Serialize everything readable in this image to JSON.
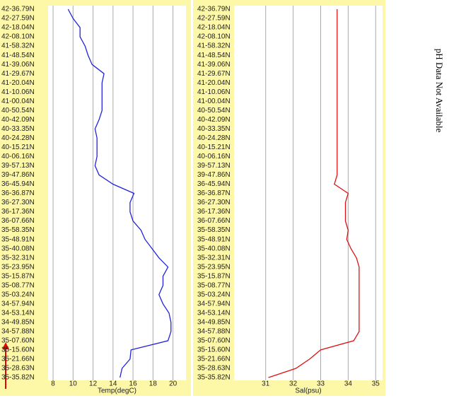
{
  "chart_data": [
    {
      "type": "line",
      "x_label": "Temp(degC)",
      "categories": [
        "42-36.79N",
        "42-27.59N",
        "42-18.04N",
        "42-08.10N",
        "41-58.32N",
        "41-48.54N",
        "41-39.06N",
        "41-29.67N",
        "41-20.04N",
        "41-10.06N",
        "41-00.04N",
        "40-50.54N",
        "40-42.09N",
        "40-33.35N",
        "40-24.28N",
        "40-15.21N",
        "40-06.16N",
        "39-57.13N",
        "39-47.86N",
        "36-45.94N",
        "36-36.87N",
        "36-27.30N",
        "36-17.36N",
        "36-07.66N",
        "35-58.35N",
        "35-48.91N",
        "35-40.08N",
        "35-32.31N",
        "35-23.95N",
        "35-15.87N",
        "35-08.77N",
        "35-03.24N",
        "34-57.94N",
        "34-53.14N",
        "34-49.85N",
        "34-57.88N",
        "35-07.60N",
        "35-15.60N",
        "35-21.66N",
        "35-28.63N",
        "35-35.82N"
      ],
      "series": [
        {
          "color": "#2222dd",
          "values": [
            9.5,
            10.0,
            10.7,
            10.7,
            11.2,
            11.5,
            11.9,
            13.1,
            12.9,
            12.9,
            12.9,
            12.9,
            12.6,
            12.2,
            12.4,
            12.4,
            12.4,
            12.2,
            12.6,
            14.0,
            16.1,
            15.7,
            15.7,
            16.0,
            16.8,
            17.2,
            17.9,
            18.6,
            19.5,
            19.0,
            19.0,
            18.6,
            19.0,
            19.6,
            19.8,
            19.8,
            19.5,
            15.8,
            15.7,
            14.9,
            14.7
          ]
        }
      ],
      "xlim": [
        7.5,
        21.3
      ],
      "xticks": [
        8,
        10,
        12,
        14,
        16,
        18,
        20
      ],
      "grid": true
    },
    {
      "type": "line",
      "x_label": "Sal(psu)",
      "categories": [
        "42-36.79N",
        "42-27.59N",
        "42-18.04N",
        "42-08.10N",
        "41-58.32N",
        "41-48.54N",
        "41-39.06N",
        "41-29.67N",
        "41-20.04N",
        "41-10.06N",
        "41-00.04N",
        "40-50.54N",
        "40-42.09N",
        "40-33.35N",
        "40-24.28N",
        "40-15.21N",
        "40-06.16N",
        "39-57.13N",
        "39-47.86N",
        "36-45.94N",
        "36-36.87N",
        "36-27.30N",
        "36-17.36N",
        "36-07.66N",
        "35-58.35N",
        "35-48.91N",
        "35-40.08N",
        "35-32.31N",
        "35-23.95N",
        "35-15.87N",
        "35-08.77N",
        "35-03.24N",
        "34-57.94N",
        "34-53.14N",
        "34-49.85N",
        "34-57.88N",
        "35-07.60N",
        "35-15.60N",
        "35-21.66N",
        "35-28.63N",
        "35-35.82N"
      ],
      "series": [
        {
          "color": "#dd1111",
          "values": [
            33.6,
            33.6,
            33.6,
            33.6,
            33.6,
            33.6,
            33.6,
            33.6,
            33.6,
            33.6,
            33.6,
            33.6,
            33.6,
            33.6,
            33.6,
            33.6,
            33.6,
            33.6,
            33.6,
            33.5,
            34.0,
            33.9,
            33.9,
            33.9,
            34.0,
            33.95,
            34.1,
            34.3,
            34.4,
            34.4,
            34.4,
            34.4,
            34.4,
            34.4,
            34.4,
            34.4,
            34.2,
            33.0,
            32.6,
            32.1,
            31.1
          ]
        }
      ],
      "xlim": [
        29.85,
        35.25
      ],
      "xticks": [
        31,
        32,
        33,
        34,
        35
      ],
      "grid": true
    }
  ],
  "note": "pH Data Not Available"
}
